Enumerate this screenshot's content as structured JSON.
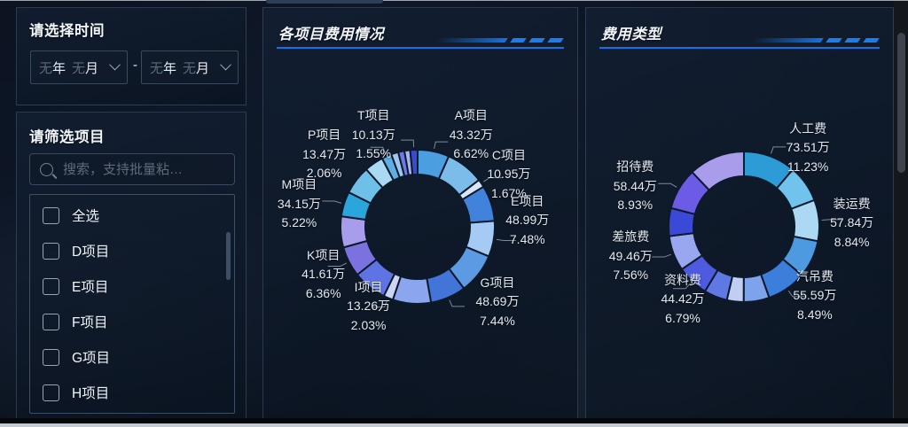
{
  "page": {
    "accent": "#1373e6",
    "background": "#0d1626"
  },
  "icons": {
    "search": "magnifier (css circle + handle)",
    "chevron_down": "css rotated square corner",
    "checkbox": "empty rounded square"
  },
  "time_panel": {
    "title": "请选择时间",
    "separator": "-",
    "start_select": {
      "year_value": "无",
      "year_suffix": "年",
      "month_value": "无",
      "month_suffix": "月"
    },
    "end_select": {
      "year_value": "无",
      "year_suffix": "年",
      "month_value": "无",
      "month_suffix": "月"
    }
  },
  "filter_panel": {
    "title": "请筛选项目",
    "search_placeholder": "搜索，支持批量粘…",
    "options": [
      {
        "label": "全选",
        "checked": false
      },
      {
        "label": "D项目",
        "checked": false
      },
      {
        "label": "E项目",
        "checked": false
      },
      {
        "label": "F项目",
        "checked": false
      },
      {
        "label": "G项目",
        "checked": false
      },
      {
        "label": "H项目",
        "checked": false
      }
    ]
  },
  "panels": {
    "projects_title": "各项目费用情况",
    "cost_title": "费用类型"
  },
  "chart_data": [
    {
      "type": "pie",
      "variant": "donut",
      "title": "各项目费用情况",
      "unit": "万",
      "legend_position": "none",
      "items": [
        {
          "name": "A项目",
          "value": "43.32万",
          "pct": "6.62%",
          "pct_est": 6.62,
          "color": "#4B9EDF",
          "show_label": true
        },
        {
          "name": "",
          "pct_est": 8.0,
          "color": "#7CBCEA",
          "show_label": false,
          "estimated": true
        },
        {
          "name": "C项目",
          "value": "10.95万",
          "pct": "1.67%",
          "pct_est": 1.67,
          "color": "#D9E6F7",
          "show_label": true
        },
        {
          "name": "",
          "pct_est": 7.5,
          "color": "#4183DA",
          "show_label": false,
          "estimated": true
        },
        {
          "name": "E项目",
          "value": "48.99万",
          "pct": "7.48%",
          "pct_est": 7.48,
          "color": "#A5CAF3",
          "show_label": true
        },
        {
          "name": "",
          "pct_est": 8.5,
          "color": "#5C9BE4",
          "show_label": false,
          "estimated": true
        },
        {
          "name": "G项目",
          "value": "48.69万",
          "pct": "7.44%",
          "pct_est": 7.44,
          "color": "#4374D7",
          "show_label": true
        },
        {
          "name": "",
          "pct_est": 8.0,
          "color": "#8CA5EF",
          "show_label": false,
          "estimated": true
        },
        {
          "name": "I项目",
          "value": "13.26万",
          "pct": "2.03%",
          "pct_est": 2.03,
          "color": "#CDD5F6",
          "show_label": true
        },
        {
          "name": "",
          "pct_est": 7.07,
          "color": "#5F74E3",
          "show_label": false,
          "estimated": true
        },
        {
          "name": "K项目",
          "value": "41.61万",
          "pct": "6.36%",
          "pct_est": 6.36,
          "color": "#7C72DF",
          "show_label": true
        },
        {
          "name": "",
          "pct_est": 6.5,
          "color": "#A89DEB",
          "show_label": false,
          "estimated": true
        },
        {
          "name": "M项目",
          "value": "34.15万",
          "pct": "5.22%",
          "pct_est": 5.22,
          "color": "#2BA6DC",
          "show_label": true
        },
        {
          "name": "",
          "pct_est": 6.0,
          "color": "#6FC0E9",
          "show_label": false,
          "estimated": true
        },
        {
          "name": "",
          "pct_est": 4.0,
          "color": "#A9D9F3",
          "show_label": false,
          "estimated": true
        },
        {
          "name": "P项目",
          "value": "13.47万",
          "pct": "2.06%",
          "pct_est": 2.06,
          "color": "#5FAFE4",
          "show_label": true
        },
        {
          "name": "",
          "pct_est": 1.5,
          "color": "#9CC8F0",
          "show_label": false,
          "estimated": true
        },
        {
          "name": "",
          "pct_est": 1.3,
          "color": "#6E79E6",
          "show_label": false,
          "estimated": true
        },
        {
          "name": "",
          "pct_est": 1.2,
          "color": "#A8B4F0",
          "show_label": false,
          "estimated": true
        },
        {
          "name": "T项目",
          "value": "10.13万",
          "pct": "1.55%",
          "pct_est": 1.55,
          "color": "#3A4BD0",
          "show_label": true
        }
      ]
    },
    {
      "type": "pie",
      "variant": "donut",
      "title": "费用类型",
      "unit": "万",
      "legend_position": "none",
      "items": [
        {
          "name": "人工费",
          "value": "73.51万",
          "pct": "11.23%",
          "pct_est": 11.23,
          "color": "#2D9BD5",
          "show_label": true
        },
        {
          "name": "",
          "pct_est": 8.0,
          "color": "#6FC3EC",
          "show_label": false,
          "estimated": true
        },
        {
          "name": "装运费",
          "value": "57.84万",
          "pct": "8.84%",
          "pct_est": 8.84,
          "color": "#ACD8F4",
          "show_label": true
        },
        {
          "name": "",
          "pct_est": 8.0,
          "color": "#4E9AE0",
          "show_label": false,
          "estimated": true
        },
        {
          "name": "汽吊费",
          "value": "55.59万",
          "pct": "8.49%",
          "pct_est": 8.49,
          "color": "#3B7EDB",
          "show_label": true
        },
        {
          "name": "",
          "pct_est": 5.5,
          "color": "#7FA2EC",
          "show_label": false,
          "estimated": true
        },
        {
          "name": "",
          "pct_est": 3.6,
          "color": "#C2CDF4",
          "show_label": false,
          "estimated": true
        },
        {
          "name": "",
          "pct_est": 5.0,
          "color": "#5E78E4",
          "show_label": false,
          "estimated": true
        },
        {
          "name": "资料费",
          "value": "44.42万",
          "pct": "6.79%",
          "pct_est": 6.79,
          "color": "#4E5ADF",
          "show_label": true
        },
        {
          "name": "差旅费",
          "value": "49.46万",
          "pct": "7.56%",
          "pct_est": 7.56,
          "color": "#98A7F0",
          "show_label": true
        },
        {
          "name": "",
          "pct_est": 6.0,
          "color": "#3A49D6",
          "show_label": false,
          "estimated": true
        },
        {
          "name": "招待费",
          "value": "58.44万",
          "pct": "8.93%",
          "pct_est": 8.93,
          "color": "#6C5CE5",
          "show_label": true
        },
        {
          "name": "",
          "pct_est": 12.06,
          "color": "#A99CEA",
          "show_label": false,
          "estimated": true
        }
      ]
    }
  ]
}
